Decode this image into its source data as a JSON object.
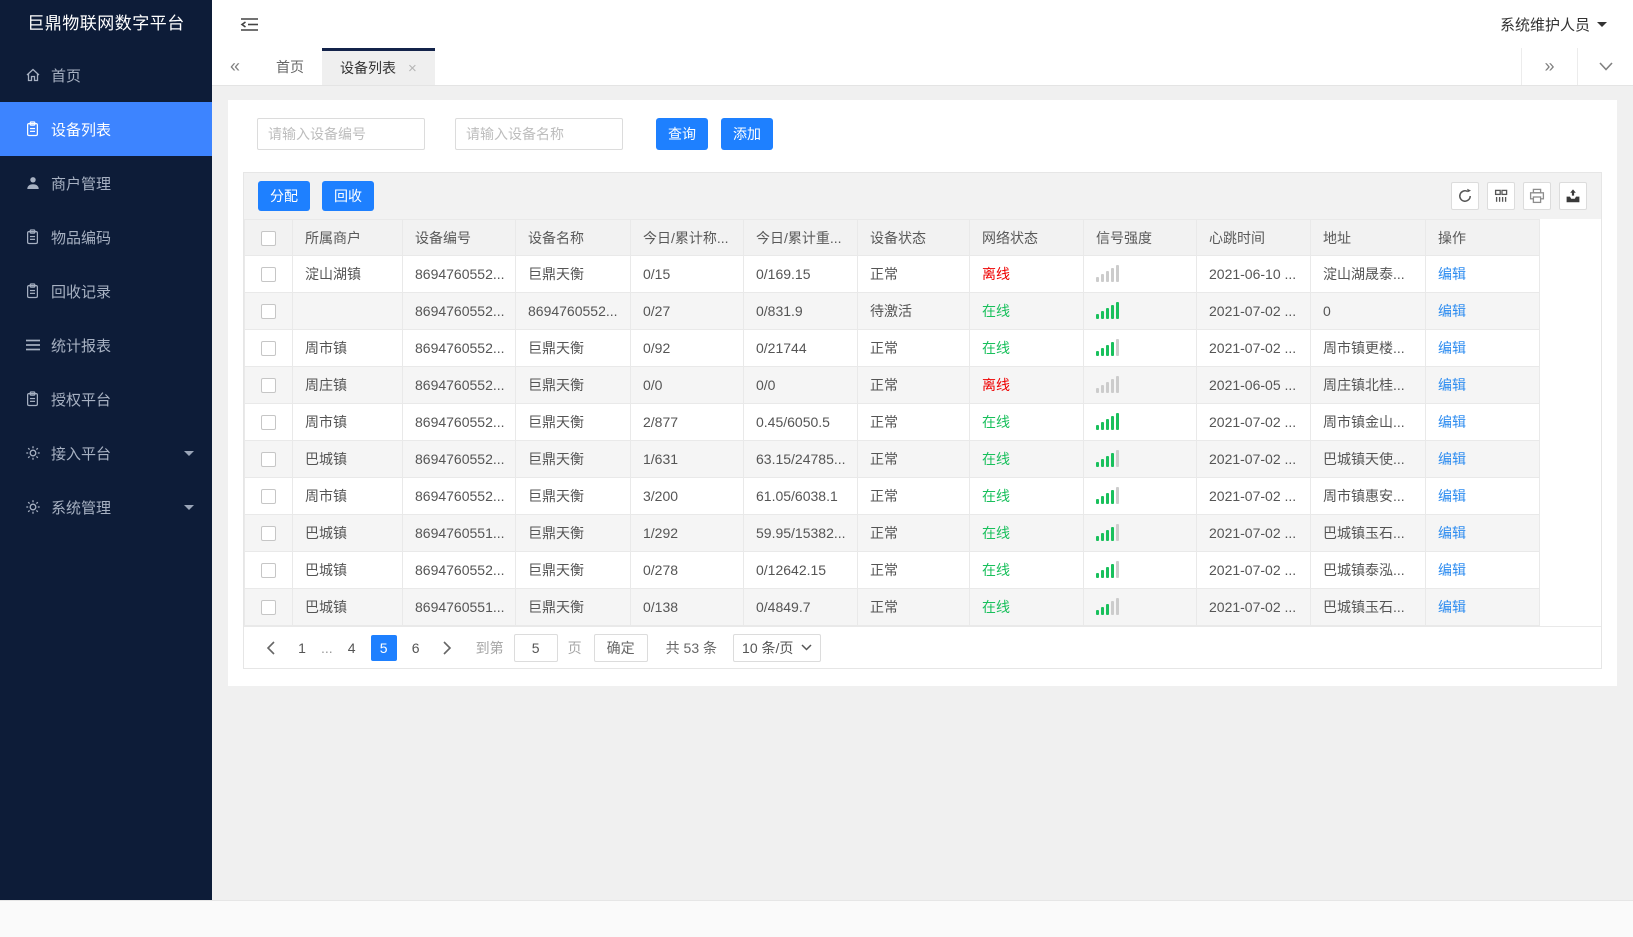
{
  "app": {
    "title": "巨鼎物联网数字平台",
    "user_name": "系统维护人员"
  },
  "sidebar": {
    "items": [
      {
        "label": "首页",
        "icon": "home-icon",
        "active": false,
        "caret": false
      },
      {
        "label": "设备列表",
        "icon": "clipboard-icon",
        "active": true,
        "caret": false
      },
      {
        "label": "商户管理",
        "icon": "user-icon",
        "active": false,
        "caret": false
      },
      {
        "label": "物品编码",
        "icon": "clipboard-icon",
        "active": false,
        "caret": false
      },
      {
        "label": "回收记录",
        "icon": "clipboard-icon",
        "active": false,
        "caret": false
      },
      {
        "label": "统计报表",
        "icon": "list-icon",
        "active": false,
        "caret": false
      },
      {
        "label": "授权平台",
        "icon": "clipboard-icon",
        "active": false,
        "caret": false
      },
      {
        "label": "接入平台",
        "icon": "gear-icon",
        "active": false,
        "caret": true
      },
      {
        "label": "系统管理",
        "icon": "gear-icon",
        "active": false,
        "caret": true
      }
    ]
  },
  "tabbar": {
    "tabs": [
      {
        "label": "首页",
        "active": false,
        "closable": false
      },
      {
        "label": "设备列表",
        "active": true,
        "closable": true
      }
    ]
  },
  "search": {
    "device_no_placeholder": "请输入设备编号",
    "device_name_placeholder": "请输入设备名称",
    "query_label": "查询",
    "add_label": "添加"
  },
  "toolbar": {
    "assign_label": "分配",
    "recycle_label": "回收",
    "icons": [
      "refresh-icon",
      "columns-icon",
      "print-icon",
      "export-icon"
    ]
  },
  "table": {
    "headers": [
      "所属商户",
      "设备编号",
      "设备名称",
      "今日/累计称...",
      "今日/累计重...",
      "设备状态",
      "网络状态",
      "信号强度",
      "心跳时间",
      "地址",
      "操作"
    ],
    "edit_label": "编辑",
    "rows": [
      {
        "merchant": "淀山湖镇",
        "device_no": "8694760552...",
        "device_name": "巨鼎天衡",
        "today_count": "0/15",
        "today_weight": "0/169.15",
        "device_status": "正常",
        "network_status": "离线",
        "online": false,
        "signal": 0,
        "heartbeat": "2021-06-10 ...",
        "address": "淀山湖晟泰..."
      },
      {
        "merchant": "",
        "device_no": "8694760552...",
        "device_name": "8694760552...",
        "today_count": "0/27",
        "today_weight": "0/831.9",
        "device_status": "待激活",
        "network_status": "在线",
        "online": true,
        "signal": 5,
        "heartbeat": "2021-07-02 ...",
        "address": "0"
      },
      {
        "merchant": "周市镇",
        "device_no": "8694760552...",
        "device_name": "巨鼎天衡",
        "today_count": "0/92",
        "today_weight": "0/21744",
        "device_status": "正常",
        "network_status": "在线",
        "online": true,
        "signal": 4,
        "heartbeat": "2021-07-02 ...",
        "address": "周市镇更楼..."
      },
      {
        "merchant": "周庄镇",
        "device_no": "8694760552...",
        "device_name": "巨鼎天衡",
        "today_count": "0/0",
        "today_weight": "0/0",
        "device_status": "正常",
        "network_status": "离线",
        "online": false,
        "signal": 0,
        "heartbeat": "2021-06-05 ...",
        "address": "周庄镇北桂..."
      },
      {
        "merchant": "周市镇",
        "device_no": "8694760552...",
        "device_name": "巨鼎天衡",
        "today_count": "2/877",
        "today_weight": "0.45/6050.5",
        "device_status": "正常",
        "network_status": "在线",
        "online": true,
        "signal": 5,
        "heartbeat": "2021-07-02 ...",
        "address": "周市镇金山..."
      },
      {
        "merchant": "巴城镇",
        "device_no": "8694760552...",
        "device_name": "巨鼎天衡",
        "today_count": "1/631",
        "today_weight": "63.15/24785...",
        "device_status": "正常",
        "network_status": "在线",
        "online": true,
        "signal": 4,
        "heartbeat": "2021-07-02 ...",
        "address": "巴城镇天使..."
      },
      {
        "merchant": "周市镇",
        "device_no": "8694760552...",
        "device_name": "巨鼎天衡",
        "today_count": "3/200",
        "today_weight": "61.05/6038.1",
        "device_status": "正常",
        "network_status": "在线",
        "online": true,
        "signal": 4,
        "heartbeat": "2021-07-02 ...",
        "address": "周市镇惠安..."
      },
      {
        "merchant": "巴城镇",
        "device_no": "8694760551...",
        "device_name": "巨鼎天衡",
        "today_count": "1/292",
        "today_weight": "59.95/15382...",
        "device_status": "正常",
        "network_status": "在线",
        "online": true,
        "signal": 4,
        "heartbeat": "2021-07-02 ...",
        "address": "巴城镇玉石..."
      },
      {
        "merchant": "巴城镇",
        "device_no": "8694760552...",
        "device_name": "巨鼎天衡",
        "today_count": "0/278",
        "today_weight": "0/12642.15",
        "device_status": "正常",
        "network_status": "在线",
        "online": true,
        "signal": 4,
        "heartbeat": "2021-07-02 ...",
        "address": "巴城镇泰泓..."
      },
      {
        "merchant": "巴城镇",
        "device_no": "8694760551...",
        "device_name": "巨鼎天衡",
        "today_count": "0/138",
        "today_weight": "0/4849.7",
        "device_status": "正常",
        "network_status": "在线",
        "online": true,
        "signal": 3,
        "heartbeat": "2021-07-02 ...",
        "address": "巴城镇玉石..."
      }
    ]
  },
  "pagination": {
    "pages": [
      "1",
      "...",
      "4",
      "5",
      "6"
    ],
    "active_page": "5",
    "goto_label": "到第",
    "page_input_value": "5",
    "page_unit_label": "页",
    "confirm_label": "确定",
    "total_label": "共 53 条",
    "page_size_label": "10 条/页"
  },
  "colors": {
    "accent_blue": "#1e80ff",
    "online_green": "#19c05c",
    "offline_red": "#ee0000",
    "signal_gray": "#cccccc",
    "sidebar_bg": "#0d1c38",
    "sidebar_active": "#3d84ff"
  }
}
